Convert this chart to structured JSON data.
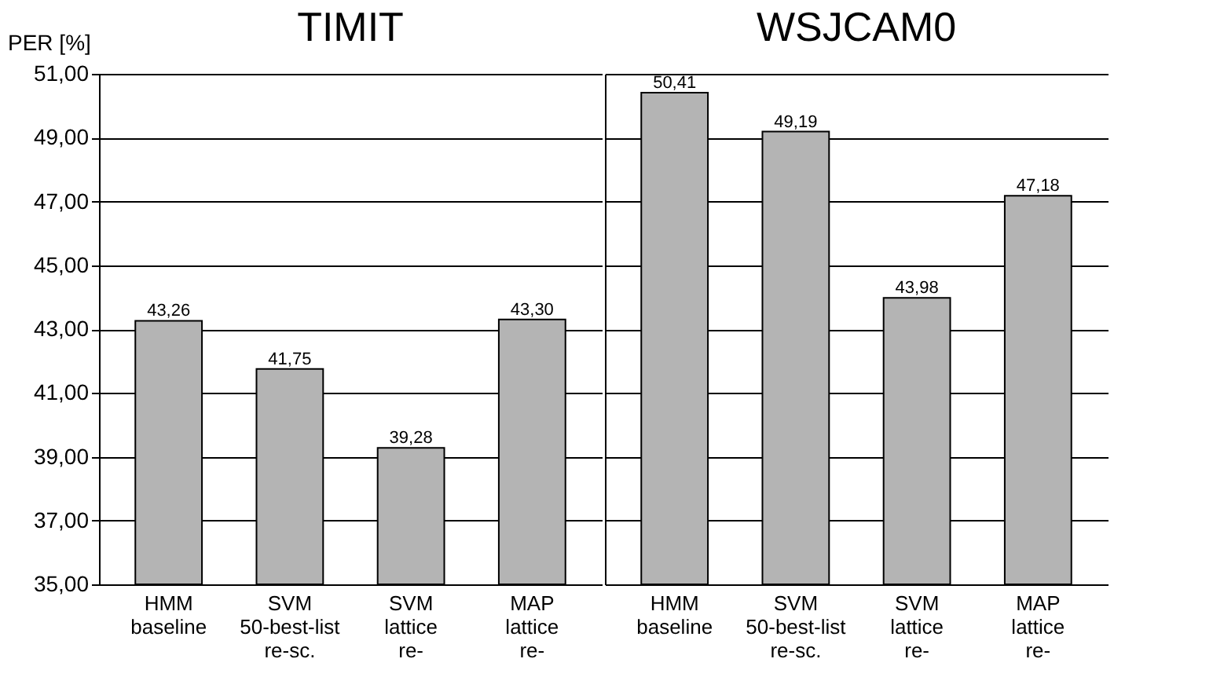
{
  "chart_data": [
    {
      "type": "bar",
      "title": "TIMIT",
      "ylabel": "PER [%]",
      "categories": [
        "HMM baseline",
        "SVM 50-best-list re-sc.",
        "SVM lattice re-",
        "MAP lattice re-"
      ],
      "values": [
        43.26,
        41.75,
        39.28,
        43.3
      ],
      "value_labels": [
        "43,26",
        "41,75",
        "39,28",
        "43,30"
      ],
      "color": "#b4b4b4",
      "ylim": [
        35,
        51
      ],
      "yticks": [
        {
          "value": 35,
          "label": "35,00"
        },
        {
          "value": 37,
          "label": "37,00"
        },
        {
          "value": 39,
          "label": "39,00"
        },
        {
          "value": 41,
          "label": "41,00"
        },
        {
          "value": 43,
          "label": "43,00"
        },
        {
          "value": 45,
          "label": "45,00"
        },
        {
          "value": 47,
          "label": "47,00"
        },
        {
          "value": 49,
          "label": "49,00"
        },
        {
          "value": 51,
          "label": "51,00"
        }
      ],
      "grid": "y"
    },
    {
      "type": "bar",
      "title": "WSJCAM0",
      "categories": [
        "HMM baseline",
        "SVM 50-best-list re-sc.",
        "SVM lattice re-",
        "MAP lattice re-"
      ],
      "values": [
        50.41,
        49.19,
        43.98,
        47.18
      ],
      "value_labels": [
        "50,41",
        "49,19",
        "43,98",
        "47,18"
      ],
      "color": "#b4b4b4",
      "ylim": [
        35,
        51
      ],
      "yticks": [
        {
          "value": 35,
          "label": null
        },
        {
          "value": 37,
          "label": null
        },
        {
          "value": 39,
          "label": null
        },
        {
          "value": 41,
          "label": null
        },
        {
          "value": 43,
          "label": null
        },
        {
          "value": 45,
          "label": null
        },
        {
          "value": 47,
          "label": null
        },
        {
          "value": 49,
          "label": null
        },
        {
          "value": 51,
          "label": null
        }
      ],
      "grid": "y",
      "tick_labels": "x"
    }
  ]
}
